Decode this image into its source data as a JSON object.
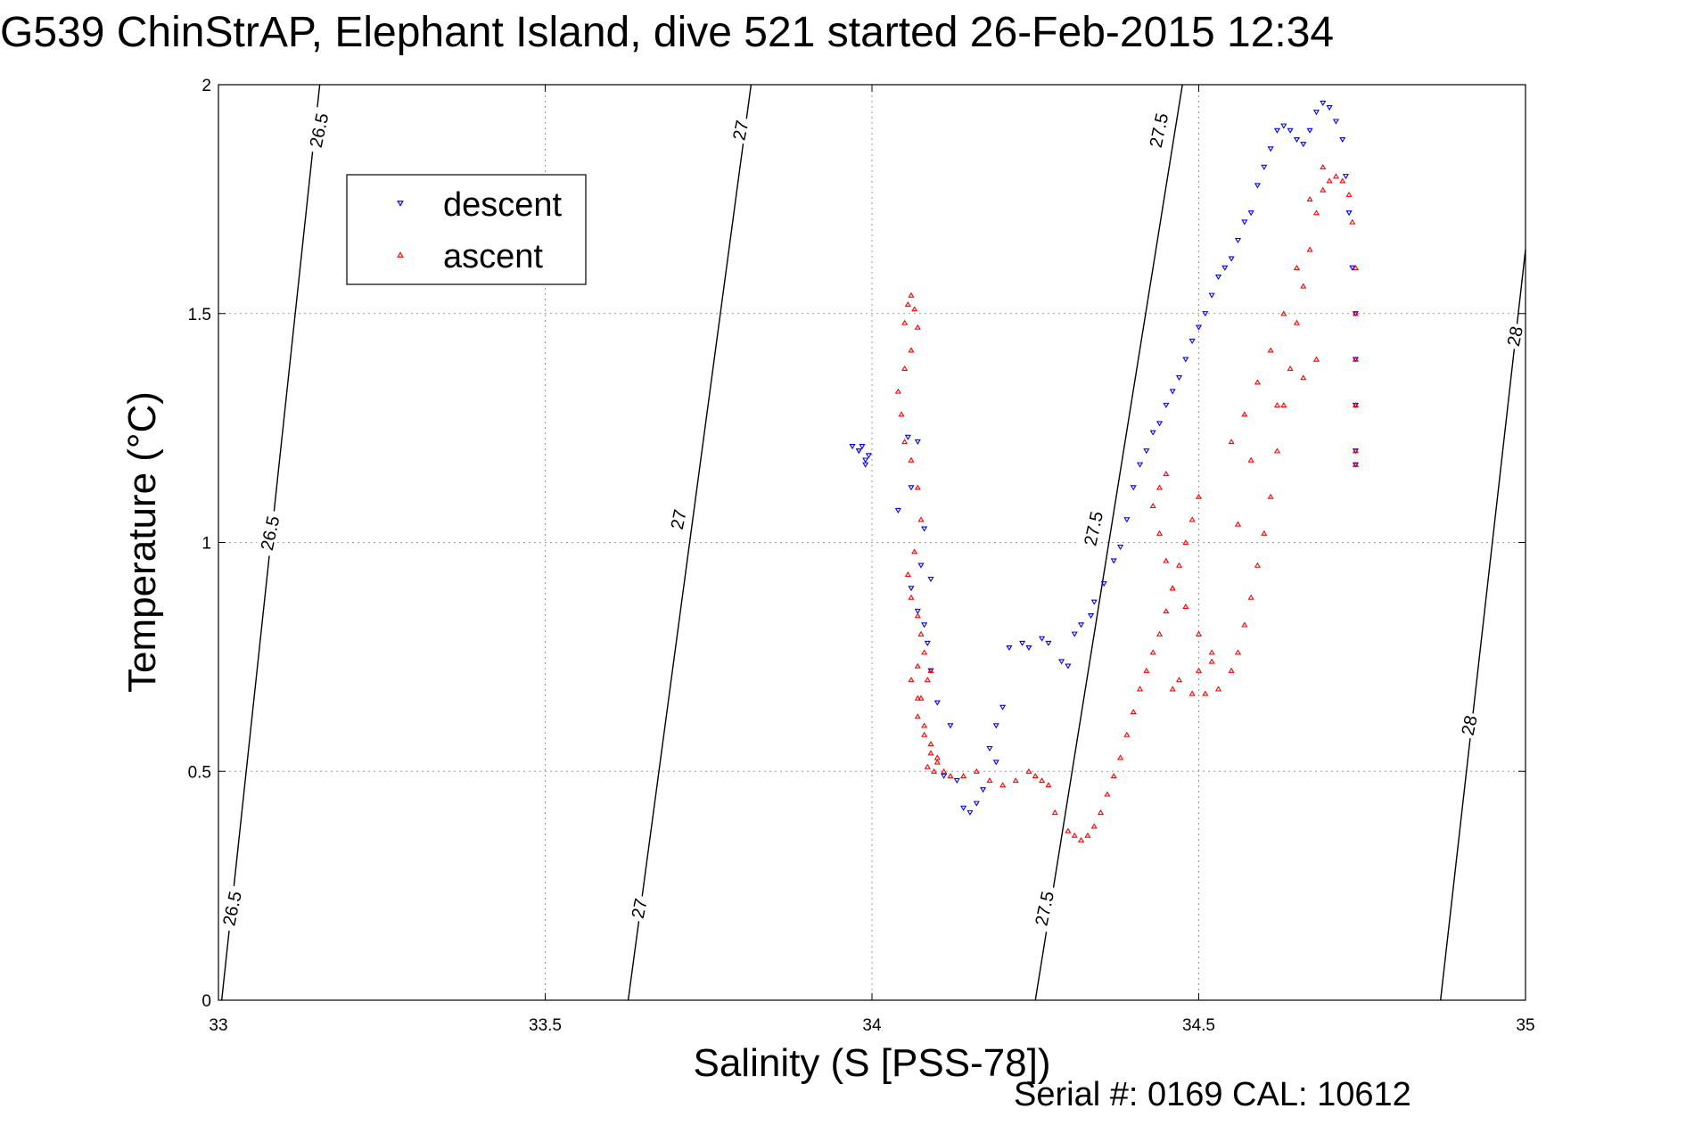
{
  "chart_data": {
    "type": "scatter",
    "title": "G539 ChinStrAP, Elephant Island, dive 521 started 26-Feb-2015 12:34",
    "xlabel": "Salinity (S [PSS-78])",
    "ylabel": "Temperature (°C)",
    "footer": "Serial #: 0169 CAL: 10612",
    "xlim": [
      33,
      35
    ],
    "ylim": [
      0,
      2
    ],
    "x_ticks": [
      "33",
      "33.5",
      "34",
      "34.5",
      "35"
    ],
    "y_ticks": [
      "0",
      "0.5",
      "1",
      "1.5",
      "2"
    ],
    "grid": true,
    "legend": {
      "position": "top-left",
      "entries": [
        "descent",
        "ascent"
      ]
    },
    "colors": {
      "descent": "#0000ff",
      "ascent": "#ff0000",
      "contour": "#000000",
      "grid": "#9a9a9a"
    },
    "density_contours": [
      {
        "label": "26.5",
        "points": [
          [
            33.005,
            0.0
          ],
          [
            33.155,
            2.0
          ]
        ]
      },
      {
        "label": "27",
        "points": [
          [
            33.627,
            0.0
          ],
          [
            33.815,
            2.0
          ]
        ]
      },
      {
        "label": "27.5",
        "points": [
          [
            34.25,
            0.0
          ],
          [
            34.475,
            2.0
          ]
        ]
      },
      {
        "label": "28",
        "points": [
          [
            34.87,
            0.0
          ],
          [
            35.0,
            1.64
          ]
        ]
      }
    ],
    "contour_labels": [
      {
        "text": "26.5",
        "x": 33.155,
        "y": 1.9
      },
      {
        "text": "26.5",
        "x": 33.08,
        "y": 1.02
      },
      {
        "text": "26.5",
        "x": 33.022,
        "y": 0.2
      },
      {
        "text": "27",
        "x": 33.8,
        "y": 1.9
      },
      {
        "text": "27",
        "x": 33.705,
        "y": 1.05
      },
      {
        "text": "27",
        "x": 33.645,
        "y": 0.2
      },
      {
        "text": "27.5",
        "x": 34.44,
        "y": 1.9
      },
      {
        "text": "27.5",
        "x": 34.34,
        "y": 1.03
      },
      {
        "text": "27.5",
        "x": 34.265,
        "y": 0.2
      },
      {
        "text": "28",
        "x": 34.985,
        "y": 1.45
      },
      {
        "text": "28",
        "x": 34.915,
        "y": 0.6
      }
    ],
    "series": [
      {
        "name": "descent",
        "marker": "triangle-down",
        "x": [
          33.97,
          33.98,
          33.99,
          33.985,
          33.99,
          33.995,
          33.98,
          34.04,
          34.06,
          34.055,
          34.07,
          34.08,
          34.075,
          34.09,
          34.085,
          34.06,
          34.07,
          34.08,
          34.09,
          34.1,
          34.12,
          34.11,
          34.13,
          34.14,
          34.15,
          34.16,
          34.17,
          34.18,
          34.19,
          34.2,
          34.21,
          34.19,
          34.23,
          34.24,
          34.26,
          34.27,
          34.29,
          34.3,
          34.31,
          34.32,
          34.34,
          34.335,
          34.355,
          34.37,
          34.38,
          34.39,
          34.4,
          34.41,
          34.42,
          34.44,
          34.43,
          34.45,
          34.46,
          34.47,
          34.48,
          34.49,
          34.5,
          34.51,
          34.52,
          34.53,
          34.54,
          34.55,
          34.56,
          34.57,
          34.58,
          34.59,
          34.6,
          34.61,
          34.62,
          34.63,
          34.64,
          34.65,
          34.66,
          34.67,
          34.68,
          34.69,
          34.7,
          34.71,
          34.72,
          34.725,
          34.73,
          34.735,
          34.74,
          34.74,
          34.74,
          34.74,
          34.74
        ],
        "y": [
          1.21,
          1.2,
          1.18,
          1.21,
          1.17,
          1.19,
          1.2,
          1.07,
          1.12,
          1.23,
          1.22,
          1.03,
          0.95,
          0.92,
          0.78,
          0.9,
          0.85,
          0.82,
          0.72,
          0.65,
          0.6,
          0.49,
          0.48,
          0.42,
          0.41,
          0.43,
          0.46,
          0.55,
          0.6,
          0.64,
          0.77,
          0.52,
          0.78,
          0.77,
          0.79,
          0.78,
          0.74,
          0.73,
          0.8,
          0.82,
          0.87,
          0.84,
          0.91,
          0.96,
          0.99,
          1.05,
          1.12,
          1.17,
          1.2,
          1.26,
          1.24,
          1.3,
          1.33,
          1.36,
          1.4,
          1.44,
          1.47,
          1.5,
          1.54,
          1.58,
          1.6,
          1.62,
          1.66,
          1.7,
          1.72,
          1.78,
          1.82,
          1.86,
          1.9,
          1.91,
          1.9,
          1.88,
          1.87,
          1.9,
          1.94,
          1.96,
          1.95,
          1.92,
          1.88,
          1.8,
          1.72,
          1.6,
          1.5,
          1.4,
          1.3,
          1.2,
          1.17
        ]
      },
      {
        "name": "ascent",
        "marker": "triangle-up",
        "x": [
          34.05,
          34.055,
          34.06,
          34.065,
          34.07,
          34.06,
          34.05,
          34.04,
          34.045,
          34.05,
          34.06,
          34.07,
          34.075,
          34.065,
          34.055,
          34.06,
          34.07,
          34.075,
          34.08,
          34.07,
          34.06,
          34.07,
          34.08,
          34.09,
          34.1,
          34.085,
          34.095,
          34.1,
          34.09,
          34.08,
          34.07,
          34.075,
          34.085,
          34.09,
          34.11,
          34.12,
          34.14,
          34.16,
          34.18,
          34.2,
          34.22,
          34.24,
          34.25,
          34.26,
          34.27,
          34.28,
          34.3,
          34.31,
          34.32,
          34.33,
          34.34,
          34.35,
          34.36,
          34.37,
          34.38,
          34.39,
          34.4,
          34.41,
          34.42,
          34.43,
          34.44,
          34.45,
          34.46,
          34.47,
          34.48,
          34.49,
          34.5,
          34.45,
          34.44,
          34.43,
          34.44,
          34.45,
          34.46,
          34.48,
          34.5,
          34.52,
          34.47,
          34.46,
          34.49,
          34.51,
          34.53,
          34.55,
          34.56,
          34.57,
          34.58,
          34.59,
          34.6,
          34.61,
          34.62,
          34.63,
          34.64,
          34.65,
          34.66,
          34.67,
          34.68,
          34.69,
          34.7,
          34.71,
          34.72,
          34.73,
          34.735,
          34.74,
          34.74,
          34.74,
          34.74,
          34.74,
          34.74,
          34.55,
          34.57,
          34.59,
          34.61,
          34.63,
          34.65,
          34.67,
          34.69,
          34.68,
          34.66,
          34.62,
          34.58,
          34.56,
          34.52,
          34.5
        ],
        "y": [
          1.48,
          1.52,
          1.54,
          1.51,
          1.47,
          1.42,
          1.38,
          1.33,
          1.28,
          1.22,
          1.18,
          1.12,
          1.05,
          0.98,
          0.93,
          0.88,
          0.84,
          0.8,
          0.76,
          0.73,
          0.7,
          0.66,
          0.6,
          0.56,
          0.53,
          0.51,
          0.5,
          0.52,
          0.54,
          0.58,
          0.62,
          0.66,
          0.7,
          0.72,
          0.5,
          0.49,
          0.49,
          0.5,
          0.48,
          0.47,
          0.48,
          0.5,
          0.49,
          0.48,
          0.47,
          0.41,
          0.37,
          0.36,
          0.35,
          0.36,
          0.38,
          0.41,
          0.45,
          0.49,
          0.53,
          0.58,
          0.63,
          0.68,
          0.72,
          0.76,
          0.8,
          0.85,
          0.9,
          0.95,
          1.0,
          1.05,
          1.1,
          1.15,
          1.12,
          1.08,
          1.02,
          0.96,
          0.9,
          0.86,
          0.8,
          0.74,
          0.7,
          0.68,
          0.67,
          0.67,
          0.68,
          0.72,
          0.76,
          0.82,
          0.88,
          0.95,
          1.02,
          1.1,
          1.2,
          1.3,
          1.38,
          1.48,
          1.56,
          1.64,
          1.72,
          1.77,
          1.79,
          1.8,
          1.79,
          1.76,
          1.7,
          1.6,
          1.5,
          1.4,
          1.3,
          1.2,
          1.17,
          1.22,
          1.28,
          1.35,
          1.42,
          1.5,
          1.6,
          1.75,
          1.82,
          1.4,
          1.36,
          1.3,
          1.18,
          1.04,
          0.76,
          0.72
        ]
      }
    ]
  }
}
